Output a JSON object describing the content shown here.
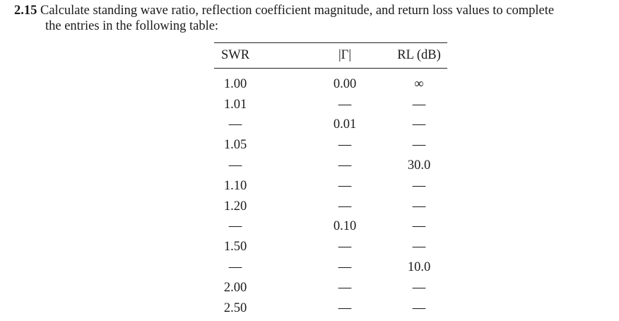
{
  "problem": {
    "number": "2.15",
    "line1": "Calculate standing wave ratio, reflection coefficient magnitude, and return loss values to complete",
    "line2": "the entries in the following table:"
  },
  "table": {
    "headers": [
      "SWR",
      "|Γ|",
      "RL (dB)"
    ],
    "rows": [
      [
        "1.00",
        "0.00",
        "∞"
      ],
      [
        "1.01",
        "—",
        "—"
      ],
      [
        "—",
        "0.01",
        "—"
      ],
      [
        "1.05",
        "—",
        "—"
      ],
      [
        "—",
        "—",
        "30.0"
      ],
      [
        "1.10",
        "—",
        "—"
      ],
      [
        "1.20",
        "—",
        "—"
      ],
      [
        "—",
        "0.10",
        "—"
      ],
      [
        "1.50",
        "—",
        "—"
      ],
      [
        "—",
        "—",
        "10.0"
      ],
      [
        "2.00",
        "—",
        "—"
      ],
      [
        "2.50",
        "—",
        "—"
      ]
    ]
  }
}
